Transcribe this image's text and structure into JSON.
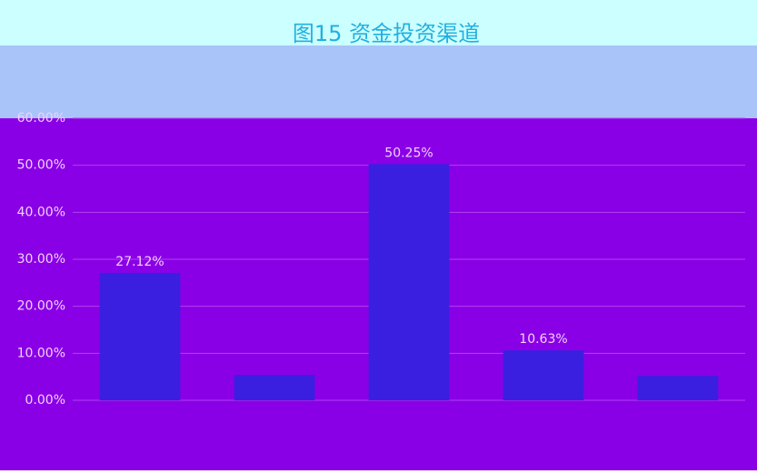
{
  "chart_data": {
    "type": "bar",
    "title": "图15 资金投资渠道",
    "categories": [
      null,
      null,
      null,
      null,
      null
    ],
    "values": [
      27.12,
      5.4,
      50.25,
      10.63,
      5.2
    ],
    "value_labels": [
      "27.12%",
      null,
      "50.25%",
      "10.63%",
      null
    ],
    "color": "#3b1fe0",
    "ylim": [
      0,
      60
    ],
    "yticks": [
      {
        "value": 0,
        "label": "0.00%"
      },
      {
        "value": 10,
        "label": "10.00%"
      },
      {
        "value": 20,
        "label": "20.00%"
      },
      {
        "value": 30,
        "label": "30.00%"
      },
      {
        "value": 40,
        "label": "40.00%"
      },
      {
        "value": 50,
        "label": "50.00%"
      },
      {
        "value": 60,
        "label": "60.00%"
      }
    ],
    "grid": true
  }
}
